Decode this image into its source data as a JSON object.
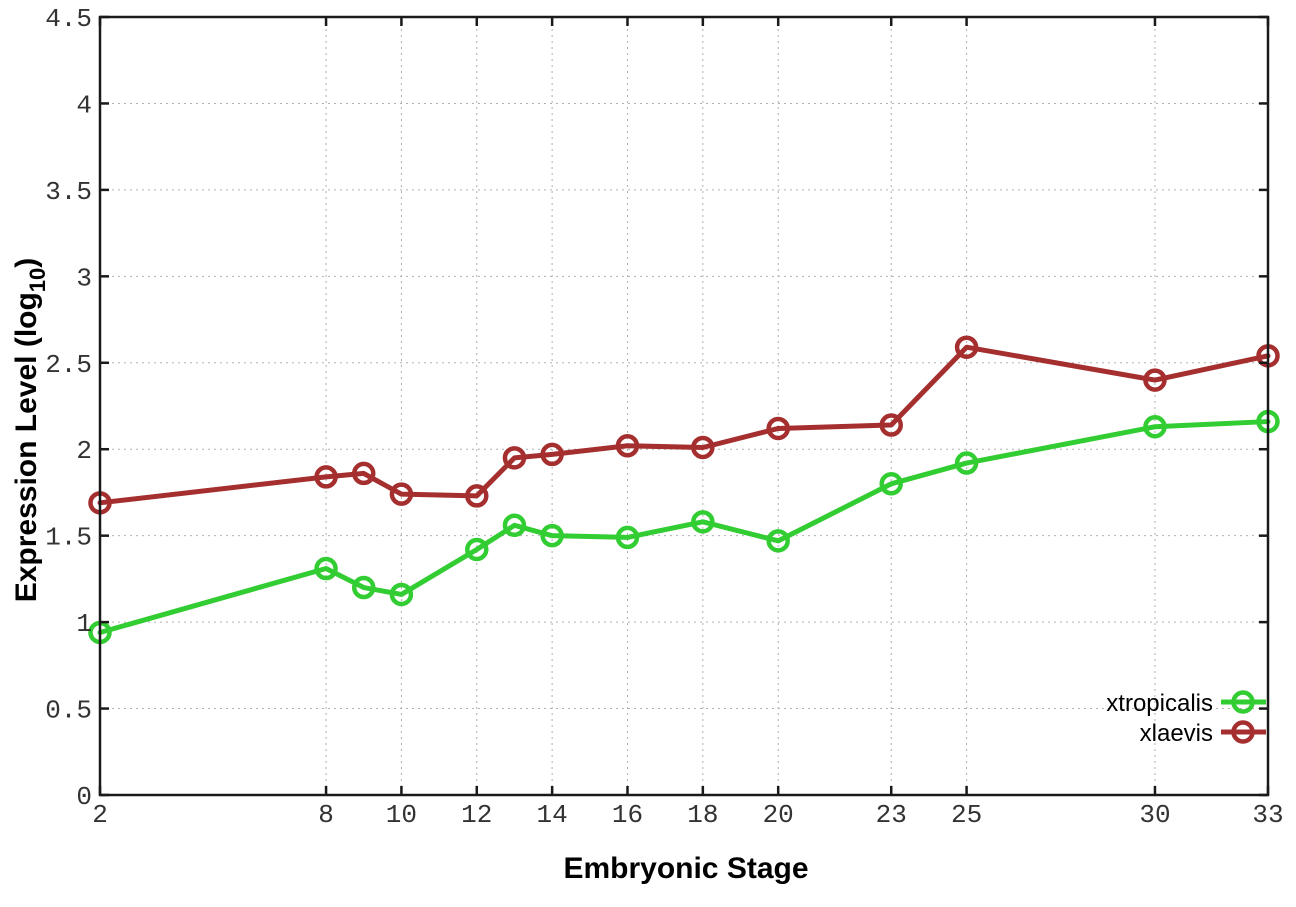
{
  "chart_data": {
    "type": "line",
    "title": "",
    "xlabel": "Embryonic Stage",
    "ylabel": {
      "main": "Expression Level (log",
      "sub": "10",
      "end": ")"
    },
    "x": [
      2,
      8,
      9,
      10,
      12,
      13,
      14,
      16,
      18,
      20,
      23,
      25,
      30,
      33
    ],
    "series": [
      {
        "name": "xtropicalis",
        "color": "#32cd32",
        "values": [
          0.94,
          1.31,
          1.2,
          1.16,
          1.42,
          1.56,
          1.5,
          1.49,
          1.58,
          1.47,
          1.8,
          1.92,
          2.13,
          2.16
        ]
      },
      {
        "name": "xlaevis",
        "color": "#a52f2f",
        "values": [
          1.69,
          1.84,
          1.86,
          1.74,
          1.73,
          1.95,
          1.97,
          2.02,
          2.01,
          2.12,
          2.14,
          2.59,
          2.4,
          2.54
        ]
      }
    ],
    "x_ticks": [
      2,
      8,
      10,
      12,
      14,
      16,
      18,
      20,
      23,
      25,
      30,
      33
    ],
    "y_ticks": [
      0,
      0.5,
      1,
      1.5,
      2,
      2.5,
      3,
      3.5,
      4,
      4.5
    ],
    "xlim": [
      2,
      33
    ],
    "ylim": [
      0,
      4.5
    ],
    "grid": true,
    "legend_position": "bottom-right",
    "legend_entries": [
      "xtropicalis",
      "xlaevis"
    ],
    "colors": {
      "grid": "#b0b0b0",
      "axis": "#1a1a1a",
      "tick_text": "#333333",
      "background": "#ffffff"
    }
  }
}
